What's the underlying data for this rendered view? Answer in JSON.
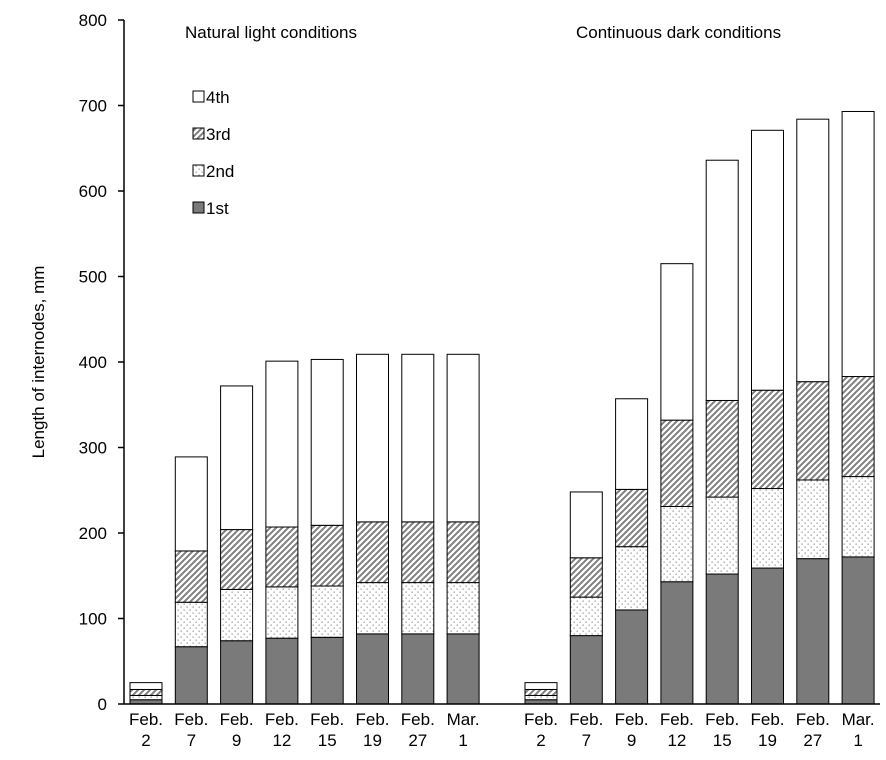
{
  "chart_data": {
    "type": "bar",
    "stacked": true,
    "ylabel": "Length of internodes, mm",
    "ylim": [
      0,
      800
    ],
    "yticks": [
      "0",
      "100",
      "200",
      "300",
      "400",
      "500",
      "600",
      "700",
      "800"
    ],
    "legend_position": "top-left",
    "legend_order": [
      "4th",
      "3rd",
      "2nd",
      "1st"
    ],
    "series_styles": {
      "1st": "solid-gray",
      "2nd": "dotted",
      "3rd": "diagonal-hatch",
      "4th": "white"
    },
    "colors": {
      "dark_fill": "#7a7a7a",
      "hatch": "#7f7f7f",
      "dots": "#999999"
    },
    "categories": [
      [
        "Feb.",
        "2"
      ],
      [
        "Feb.",
        "7"
      ],
      [
        "Feb.",
        "9"
      ],
      [
        "Feb.",
        "12"
      ],
      [
        "Feb.",
        "15"
      ],
      [
        "Feb.",
        "19"
      ],
      [
        "Feb.",
        "27"
      ],
      [
        "Mar.",
        "1"
      ]
    ],
    "panels": [
      {
        "title": "Natural light conditions",
        "series": [
          {
            "name": "1st",
            "values": [
              5,
              67,
              74,
              77,
              78,
              82,
              82,
              82
            ]
          },
          {
            "name": "2nd",
            "values": [
              5,
              52,
              60,
              60,
              60,
              60,
              60,
              60
            ]
          },
          {
            "name": "3rd",
            "values": [
              7,
              60,
              70,
              70,
              71,
              71,
              71,
              71
            ]
          },
          {
            "name": "4th",
            "values": [
              8,
              110,
              168,
              194,
              194,
              196,
              196,
              196
            ]
          }
        ]
      },
      {
        "title": "Continuous dark conditions",
        "series": [
          {
            "name": "1st",
            "values": [
              5,
              80,
              110,
              143,
              152,
              159,
              170,
              172
            ]
          },
          {
            "name": "2nd",
            "values": [
              5,
              45,
              74,
              88,
              90,
              93,
              92,
              94
            ]
          },
          {
            "name": "3rd",
            "values": [
              7,
              46,
              67,
              101,
              113,
              115,
              115,
              117
            ]
          },
          {
            "name": "4th",
            "values": [
              8,
              77,
              106,
              183,
              281,
              304,
              307,
              310
            ]
          }
        ]
      }
    ]
  }
}
